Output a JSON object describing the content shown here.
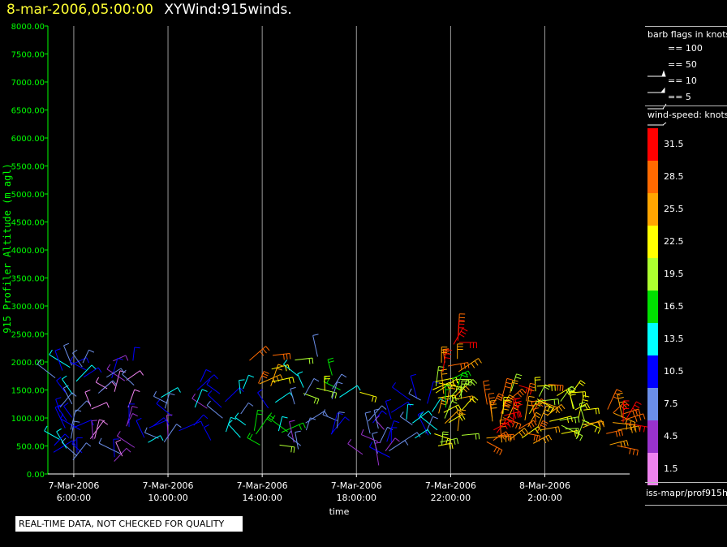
{
  "header": {
    "timestamp": "8-mar-2006,05:00:00",
    "title": "XYWind:915winds."
  },
  "chart_data": {
    "type": "scatter",
    "ylabel": "915 Profiler Altitude (m agl)",
    "xlabel": "time",
    "ylim": [
      0,
      8000
    ],
    "y_ticks": [
      "0.00",
      "500.00",
      "1000.00",
      "1500.00",
      "2000.00",
      "2500.00",
      "3000.00",
      "3500.00",
      "4000.00",
      "4500.00",
      "5000.00",
      "5500.00",
      "6000.00",
      "6500.00",
      "7000.00",
      "7500.00",
      "8000.00"
    ],
    "x_range_hours": [
      4.9,
      29.6
    ],
    "x_ticks": [
      {
        "hour": 6,
        "line1": "7-Mar-2006",
        "line2": "6:00:00"
      },
      {
        "hour": 10,
        "line1": "7-Mar-2006",
        "line2": "10:00:00"
      },
      {
        "hour": 14,
        "line1": "7-Mar-2006",
        "line2": "14:00:00"
      },
      {
        "hour": 18,
        "line1": "7-Mar-2006",
        "line2": "18:00:00"
      },
      {
        "hour": 22,
        "line1": "7-Mar-2006",
        "line2": "22:00:00"
      },
      {
        "hour": 26,
        "line1": "8-Mar-2006",
        "line2": "2:00:00"
      }
    ],
    "grid": "vertical at x ticks",
    "series": [
      {
        "hours": [
          5.1,
          6.5
        ],
        "alt_min": 250,
        "alt_max": 2150,
        "speed": [
          4.5,
          13.5
        ],
        "density": 30
      },
      {
        "hours": [
          6.5,
          8.6
        ],
        "alt_min": 200,
        "alt_max": 2150,
        "speed": [
          1.5,
          10.5
        ],
        "density": 26
      },
      {
        "hours": [
          8.6,
          10.5
        ],
        "alt_min": 550,
        "alt_max": 1450,
        "speed": [
          4.5,
          13.5
        ],
        "density": 12
      },
      {
        "hours": [
          11.0,
          13.2
        ],
        "alt_min": 400,
        "alt_max": 1700,
        "speed": [
          4.5,
          13.5
        ],
        "density": 14
      },
      {
        "hours": [
          13.0,
          15.3
        ],
        "alt_min": 500,
        "alt_max": 2150,
        "speed": [
          10.5,
          28.5
        ],
        "density": 18
      },
      {
        "hours": [
          15.3,
          18.3
        ],
        "alt_min": 1200,
        "alt_max": 2100,
        "speed": [
          7.5,
          22.5
        ],
        "density": 14
      },
      {
        "hours": [
          15.2,
          17.8
        ],
        "alt_min": 400,
        "alt_max": 1400,
        "speed": [
          4.5,
          10.5
        ],
        "density": 10
      },
      {
        "hours": [
          18.2,
          20.2
        ],
        "alt_min": 150,
        "alt_max": 1200,
        "speed": [
          4.5,
          10.5
        ],
        "density": 18
      },
      {
        "hours": [
          20.0,
          21.5
        ],
        "alt_min": 600,
        "alt_max": 1500,
        "speed": [
          7.5,
          13.5
        ],
        "density": 12
      },
      {
        "hours": [
          21.2,
          22.6
        ],
        "alt_min": 500,
        "alt_max": 1700,
        "speed": [
          16.5,
          25.5
        ],
        "density": 30
      },
      {
        "hours": [
          21.6,
          22.6
        ],
        "alt_min": 1700,
        "alt_max": 2500,
        "speed": [
          25.5,
          31.5
        ],
        "density": 10
      },
      {
        "hours": [
          23.3,
          24.3
        ],
        "alt_min": 550,
        "alt_max": 1250,
        "speed": [
          25.5,
          31.5
        ],
        "density": 14
      },
      {
        "hours": [
          24.0,
          26.2
        ],
        "alt_min": 500,
        "alt_max": 1600,
        "speed": [
          19.5,
          31.5
        ],
        "density": 34
      },
      {
        "hours": [
          26.2,
          27.7
        ],
        "alt_min": 600,
        "alt_max": 1500,
        "speed": [
          16.5,
          25.5
        ],
        "density": 18
      },
      {
        "hours": [
          28.6,
          29.5
        ],
        "alt_min": 500,
        "alt_max": 1200,
        "speed": [
          25.5,
          31.5
        ],
        "density": 14
      }
    ]
  },
  "legend": {
    "barb_title": "barb flags in knots",
    "barbs": [
      "== 100",
      "== 50",
      "== 10",
      "== 5"
    ],
    "speed_title": "wind-speed: knots",
    "speed_scale": [
      {
        "label": "31.5",
        "color": "#ff0000"
      },
      {
        "label": "28.5",
        "color": "#ff6a00"
      },
      {
        "label": "25.5",
        "color": "#ffa500"
      },
      {
        "label": "22.5",
        "color": "#ffff00"
      },
      {
        "label": "19.5",
        "color": "#adff2f"
      },
      {
        "label": "16.5",
        "color": "#00e000"
      },
      {
        "label": "13.5",
        "color": "#00ffff"
      },
      {
        "label": "10.5",
        "color": "#0000ff"
      },
      {
        "label": "7.5",
        "color": "#6b8ee8"
      },
      {
        "label": "4.5",
        "color": "#9932cc"
      },
      {
        "label": "1.5",
        "color": "#ee82ee"
      }
    ],
    "source": "iss-mapr/prof915h"
  },
  "footer": {
    "qc_notice": "REAL-TIME DATA, NOT CHECKED FOR QUALITY"
  }
}
